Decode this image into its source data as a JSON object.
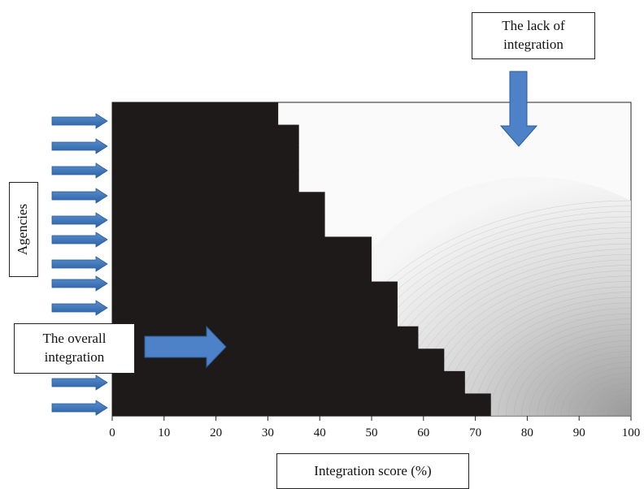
{
  "chart_data": {
    "type": "bar",
    "orientation": "horizontal",
    "xlabel": "Integration score (%)",
    "ylabel": "Agencies",
    "xlim": [
      0,
      100
    ],
    "x_ticks": [
      "0",
      "10",
      "20",
      "30",
      "40",
      "50",
      "60",
      "70",
      "80",
      "90",
      "100"
    ],
    "grid": false,
    "bar_color": "#1e1a1a",
    "arrow_color": "#2e6db0",
    "values": [
      32,
      36,
      36,
      36,
      41,
      41,
      50,
      50,
      55,
      55,
      59,
      64,
      68,
      73
    ]
  },
  "annotations": {
    "lack": "The lack of\nintegration",
    "overall": "The overall\nintegration"
  }
}
